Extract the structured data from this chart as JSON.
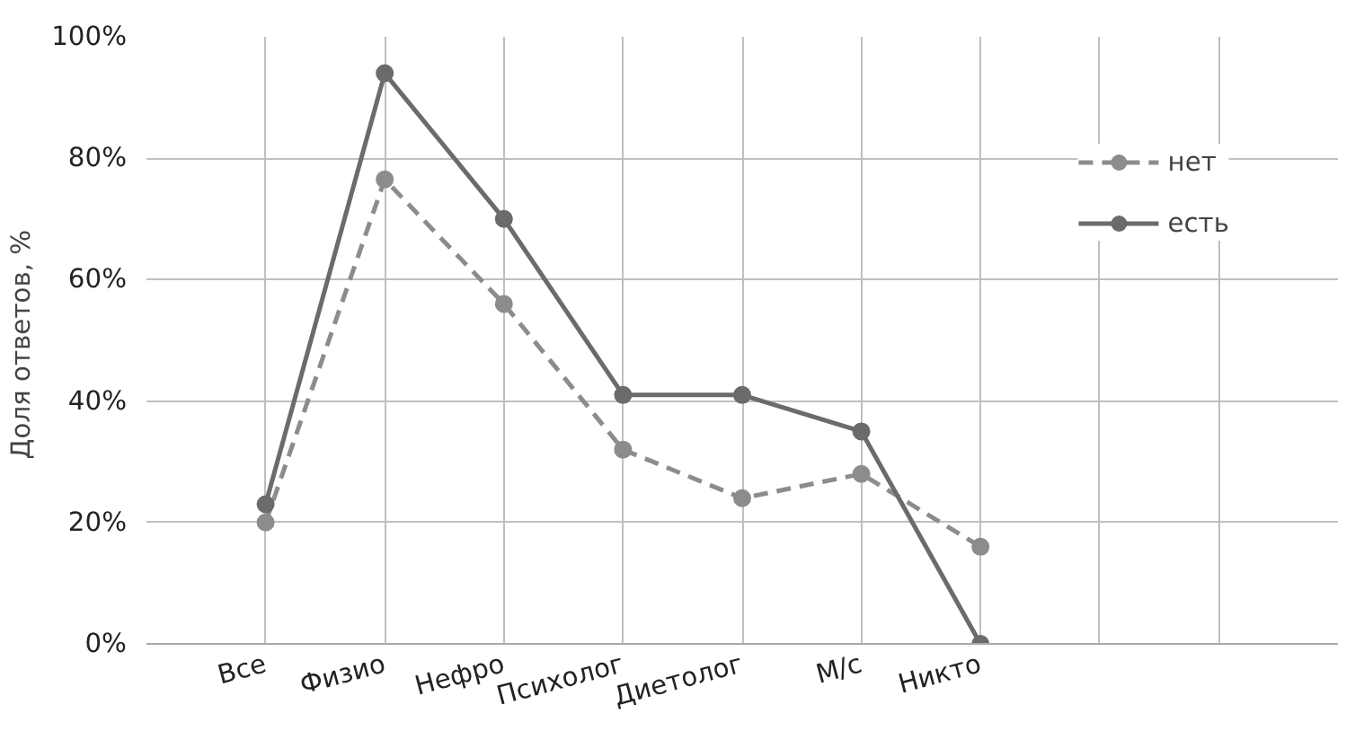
{
  "chart_data": {
    "type": "line",
    "ylabel": "Доля  ответов, %",
    "categories": [
      "Все",
      "Физио",
      "Нефро",
      "Психолог",
      "Диетолог",
      "М/с",
      "Никто",
      null,
      null
    ],
    "series": [
      {
        "name": "нет",
        "color": "#8c8c8c",
        "line_style": "dashed",
        "values": [
          20,
          76.5,
          56,
          32,
          24,
          28,
          16,
          null,
          null
        ]
      },
      {
        "name": "есть",
        "color": "#6b6b6b",
        "line_style": "solid",
        "values": [
          23,
          94,
          70,
          41,
          41,
          35,
          0,
          null,
          null
        ]
      }
    ],
    "ylim": [
      0,
      100
    ],
    "yticks": [
      {
        "value": 0,
        "label": "0%"
      },
      {
        "value": 20,
        "label": "20%"
      },
      {
        "value": 40,
        "label": "40%"
      },
      {
        "value": 60,
        "label": "60%"
      },
      {
        "value": 80,
        "label": "80%"
      },
      {
        "value": 100,
        "label": "100%"
      }
    ],
    "grid": true,
    "legend": "top right",
    "marker": "circle"
  }
}
